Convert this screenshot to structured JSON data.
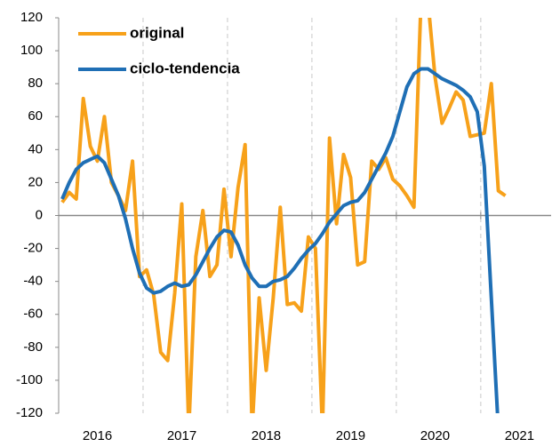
{
  "chart_data": {
    "type": "line",
    "categories": [
      null,
      null,
      null,
      null,
      null,
      "2016",
      null,
      null,
      null,
      null,
      null,
      null,
      null,
      null,
      null,
      null,
      null,
      "2017",
      null,
      null,
      null,
      null,
      null,
      null,
      null,
      null,
      null,
      null,
      null,
      "2018",
      null,
      null,
      null,
      null,
      null,
      null,
      null,
      null,
      null,
      null,
      null,
      "2019",
      null,
      null,
      null,
      null,
      null,
      null,
      null,
      null,
      null,
      null,
      null,
      "2020",
      null,
      null,
      null,
      null,
      null,
      null,
      null,
      null,
      null,
      null,
      null,
      "2021",
      null,
      null,
      null,
      null
    ],
    "series": [
      {
        "name": "original",
        "color": "#f7a11a",
        "values": [
          8,
          14,
          10,
          71,
          42,
          33,
          60,
          20,
          12,
          3,
          33,
          -37,
          -33,
          -48,
          -83,
          -88,
          -47,
          7,
          -130,
          -25,
          3,
          -37,
          -30,
          16,
          -25,
          17,
          43,
          -130,
          -50,
          -94,
          -50,
          5,
          -54,
          -53,
          -58,
          -13,
          -20,
          -130,
          47,
          -5,
          37,
          23,
          -30,
          -28,
          33,
          28,
          35,
          22,
          18,
          12,
          5,
          130,
          130,
          84,
          56,
          65,
          75,
          70,
          48,
          49,
          50,
          80,
          15,
          12,
          null,
          null,
          null,
          null,
          null,
          null
        ]
      },
      {
        "name": "ciclo-tendencia",
        "color": "#1f6fb5",
        "values": [
          10,
          20,
          28,
          32,
          34,
          36,
          32,
          22,
          12,
          -2,
          -20,
          -35,
          -44,
          -47,
          -46,
          -43,
          -41,
          -43,
          -42,
          -36,
          -28,
          -20,
          -13,
          -9,
          -10,
          -18,
          -30,
          -38,
          -43,
          -43,
          -40,
          -39,
          -37,
          -32,
          -26,
          -21,
          -17,
          -11,
          -4,
          1,
          6,
          8,
          9,
          14,
          22,
          30,
          38,
          48,
          63,
          78,
          86,
          89,
          89,
          86,
          83,
          81,
          79,
          76,
          72,
          63,
          30,
          -50,
          -130,
          null,
          null,
          null,
          null,
          null,
          null,
          null
        ]
      }
    ],
    "ylim": [
      -120,
      120
    ],
    "yticks": [
      -120,
      -100,
      -80,
      -60,
      -40,
      -20,
      0,
      20,
      40,
      60,
      80,
      100,
      120
    ],
    "legend": "upper left"
  }
}
